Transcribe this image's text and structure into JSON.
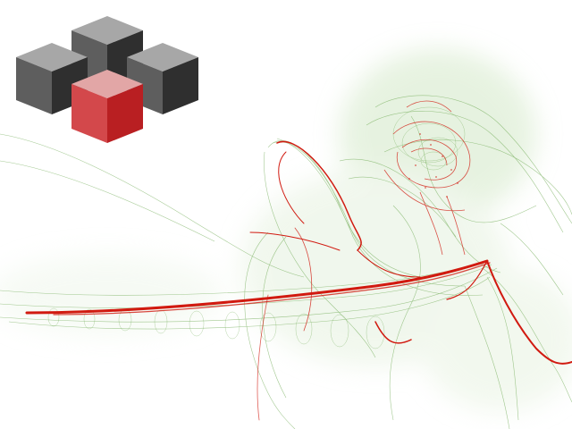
{
  "wallpaper": {
    "logo_icon": "stacked-cubes-logo-icon",
    "attractor_icon": "strange-attractor-plot",
    "colors": {
      "background": "#ffffff",
      "cube_face_light": "#a7a7a7",
      "cube_face_left": "#5e5e5e",
      "cube_face_right": "#2f2f2f",
      "highlight_cube_top": "#e2a6a6",
      "highlight_cube_left": "#d3484b",
      "highlight_cube_right": "#b91f22",
      "trace_green": "#5a9e3b",
      "trace_red": "#d11a10"
    }
  }
}
